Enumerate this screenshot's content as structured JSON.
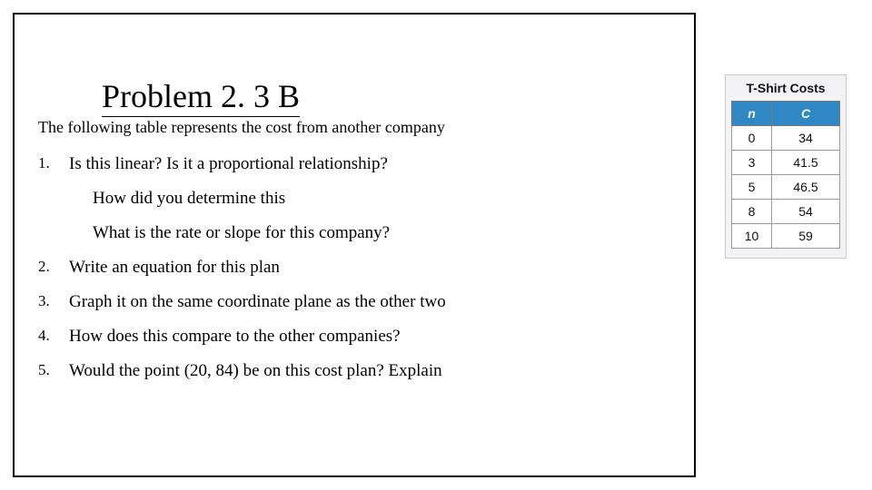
{
  "title": "Problem 2. 3 B",
  "subtitle": "The following table represents the cost from another company",
  "questions": {
    "q1_num": "1.",
    "q1_text": "Is this linear?  Is it a proportional relationship?",
    "q1_sub_a": "How did you determine this",
    "q1_sub_b": "What is the rate or slope for this company?",
    "q2_num": "2.",
    "q2_text": "Write an equation for this plan",
    "q3_num": "3.",
    "q3_text": "Graph it on the same coordinate plane as the other two",
    "q4_num": "4.",
    "q4_text": "How does this compare to the other companies?",
    "q5_num": "5.",
    "q5_text": "Would the point (20, 84) be on this cost plan?  Explain"
  },
  "table": {
    "title": "T-Shirt Costs",
    "header_bg": "#2f87c3",
    "header_color": "#ffffff",
    "cell_bg": "#ffffff",
    "border_color": "#9a9a9a",
    "box_bg": "#f3f3f5",
    "columns": [
      "n",
      "C"
    ],
    "rows": [
      [
        "0",
        "34"
      ],
      [
        "3",
        "41.5"
      ],
      [
        "5",
        "46.5"
      ],
      [
        "8",
        "54"
      ],
      [
        "10",
        "59"
      ]
    ]
  },
  "title_fontsize": 36,
  "body_fontsize": 19
}
